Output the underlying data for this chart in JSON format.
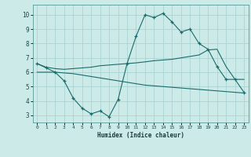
{
  "bg_color": "#cceae8",
  "grid_color": "#aad4d2",
  "line_color": "#1a6b6b",
  "xlabel": "Humidex (Indice chaleur)",
  "xlim": [
    -0.5,
    23.5
  ],
  "ylim": [
    2.5,
    10.7
  ],
  "yticks": [
    3,
    4,
    5,
    6,
    7,
    8,
    9,
    10
  ],
  "xticks": [
    0,
    1,
    2,
    3,
    4,
    5,
    6,
    7,
    8,
    9,
    10,
    11,
    12,
    13,
    14,
    15,
    16,
    17,
    18,
    19,
    20,
    21,
    22,
    23
  ],
  "curve_main_x": [
    0,
    1,
    2,
    3,
    4,
    5,
    6,
    7,
    8,
    9,
    10,
    11,
    12,
    13,
    14,
    15,
    16,
    17,
    18,
    19,
    20,
    21,
    22,
    23
  ],
  "curve_main_y": [
    6.6,
    6.3,
    6.0,
    5.4,
    4.2,
    3.5,
    3.1,
    3.3,
    2.9,
    4.1,
    6.6,
    8.5,
    10.0,
    9.8,
    10.1,
    9.5,
    8.8,
    9.0,
    8.0,
    7.6,
    6.4,
    5.5,
    5.5,
    4.6
  ],
  "curve_upper_x": [
    0,
    1,
    2,
    3,
    4,
    5,
    6,
    7,
    8,
    9,
    10,
    11,
    12,
    13,
    14,
    15,
    16,
    17,
    18,
    19,
    20,
    21,
    22,
    23
  ],
  "curve_upper_y": [
    6.6,
    6.35,
    6.25,
    6.2,
    6.25,
    6.3,
    6.35,
    6.45,
    6.5,
    6.55,
    6.6,
    6.65,
    6.72,
    6.8,
    6.85,
    6.9,
    7.0,
    7.1,
    7.2,
    7.55,
    7.6,
    6.4,
    5.5,
    5.5
  ],
  "curve_lower_x": [
    0,
    1,
    2,
    3,
    4,
    5,
    6,
    7,
    8,
    9,
    10,
    11,
    12,
    13,
    14,
    15,
    16,
    17,
    18,
    19,
    20,
    21,
    22,
    23
  ],
  "curve_lower_y": [
    6.0,
    6.0,
    6.0,
    5.95,
    5.9,
    5.8,
    5.7,
    5.6,
    5.5,
    5.4,
    5.3,
    5.2,
    5.1,
    5.05,
    5.0,
    4.95,
    4.9,
    4.85,
    4.8,
    4.75,
    4.7,
    4.65,
    4.6,
    4.55
  ]
}
